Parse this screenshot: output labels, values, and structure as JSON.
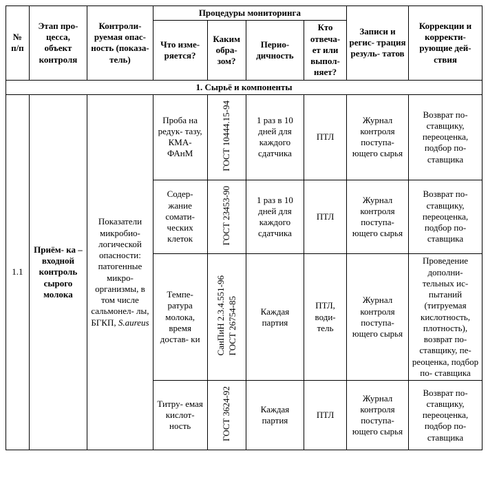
{
  "header": {
    "num": "№ п/п",
    "stage": "Этап про-\nцесса, объект контроля",
    "hazard": "Контроли-\nруемая опас-\nность (показа-\nтель)",
    "monitoring_group": "Процедуры мониторинга",
    "what": "Что изме-\nряется?",
    "how": "Каким обра-\nзом?",
    "period": "Перио-\nдичность",
    "who": "Кто отвеча-\nет или выпол-\nняет?",
    "records": "Записи и регис-\nтрация резуль-\nтатов",
    "corrections": "Коррекции и корректи-\nрующие дей-\nствия"
  },
  "section1": "1. Сырьё и компоненты",
  "row": {
    "num": "1.1",
    "stage": "Приём-\nка – входной контроль сырого молока",
    "hazard_plain": "Показатели микробио-\nлогической опасности: патогенные микро-\nорганизмы, в том числе сальмонел-\nлы, БГКП, ",
    "hazard_italic": "S.aureus"
  },
  "sub": [
    {
      "what": "Проба на редук-\nтазу, КМА-\nФАнМ",
      "how": "ГОСТ 10444.15-94",
      "period": "1 раз в 10 дней для каждого сдатчика",
      "who": "ПТЛ",
      "records": "Журнал контроля поступа-\nющего сырья",
      "corr": "Возврат по-\nставщику, переоценка, подбор по-\nставщика"
    },
    {
      "what": "Содер-\nжание сомати-\nческих клеток",
      "how": "ГОСТ 23453-90",
      "period": "1 раз в 10 дней для каждого сдатчика",
      "who": "ПТЛ",
      "records": "Журнал контроля поступа-\nющего сырья",
      "corr": "Возврат по-\nставщику, переоценка, подбор по-\nставщика"
    },
    {
      "what": "Темпе-\nратура молока, время достав-\nки",
      "how_l1": "СанПиН 2.3.4.551-96",
      "how_l2": "ГОСТ 26754-85",
      "period": "Каждая партия",
      "who": "ПТЛ, води-\nтель",
      "records": "Журнал контроля поступа-\nющего сырья",
      "corr": "Проведение дополни-\nтельных ис-\nпытаний (титруемая кислотность, плотность), возврат по-\nставщику, пе-\nреоценка, подбор по-\nставщика"
    },
    {
      "what": "Титру-\nемая кислот-\nность",
      "how": "ГОСТ 3624-92",
      "period": "Каждая партия",
      "who": "ПТЛ",
      "records": "Журнал контроля поступа-\nющего сырья",
      "corr": "Возврат по-\nставщику, переоценка, подбор по-\nставщика"
    }
  ]
}
